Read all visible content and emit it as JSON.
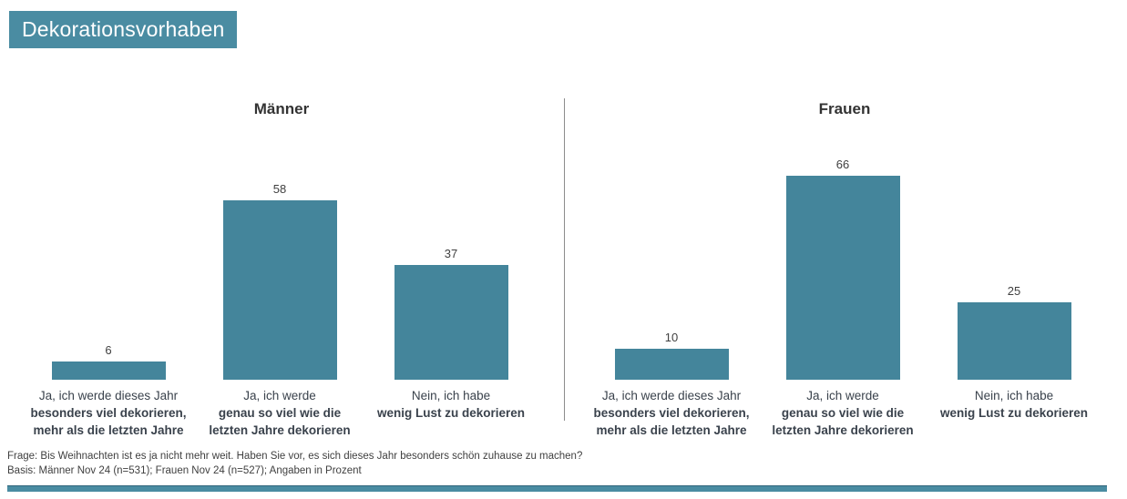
{
  "title": "Dekorationsvorhaben",
  "colors": {
    "accent": "#4A8CA2",
    "bar": "#44859B",
    "divider": "#8C8C8C",
    "text": "#404040"
  },
  "chart_data": {
    "type": "bar",
    "title": "Dekorationsvorhaben",
    "ylim": [
      0,
      80
    ],
    "grid": false,
    "value_labels": true,
    "unit": "Prozent",
    "categories": [
      {
        "lines": [
          "Ja, ich werde dieses Jahr",
          "besonders viel dekorieren,",
          "mehr als die letzten Jahre"
        ],
        "bold_from_line": 1
      },
      {
        "lines": [
          "Ja, ich werde",
          "genau so viel wie die",
          "letzten Jahre dekorieren"
        ],
        "bold_from_line": 1
      },
      {
        "lines": [
          "Nein, ich habe",
          "wenig Lust zu dekorieren"
        ],
        "bold_from_line": 1
      }
    ],
    "series": [
      {
        "name": "Männer",
        "values": [
          6,
          58,
          37
        ]
      },
      {
        "name": "Frauen",
        "values": [
          10,
          66,
          25
        ]
      }
    ]
  },
  "footer": {
    "question": "Frage: Bis Weihnachten ist es ja nicht mehr weit. Haben Sie vor, es sich dieses Jahr besonders schön zuhause zu machen?",
    "basis": "Basis: Männer Nov 24 (n=531); Frauen Nov 24 (n=527); Angaben in Prozent"
  }
}
